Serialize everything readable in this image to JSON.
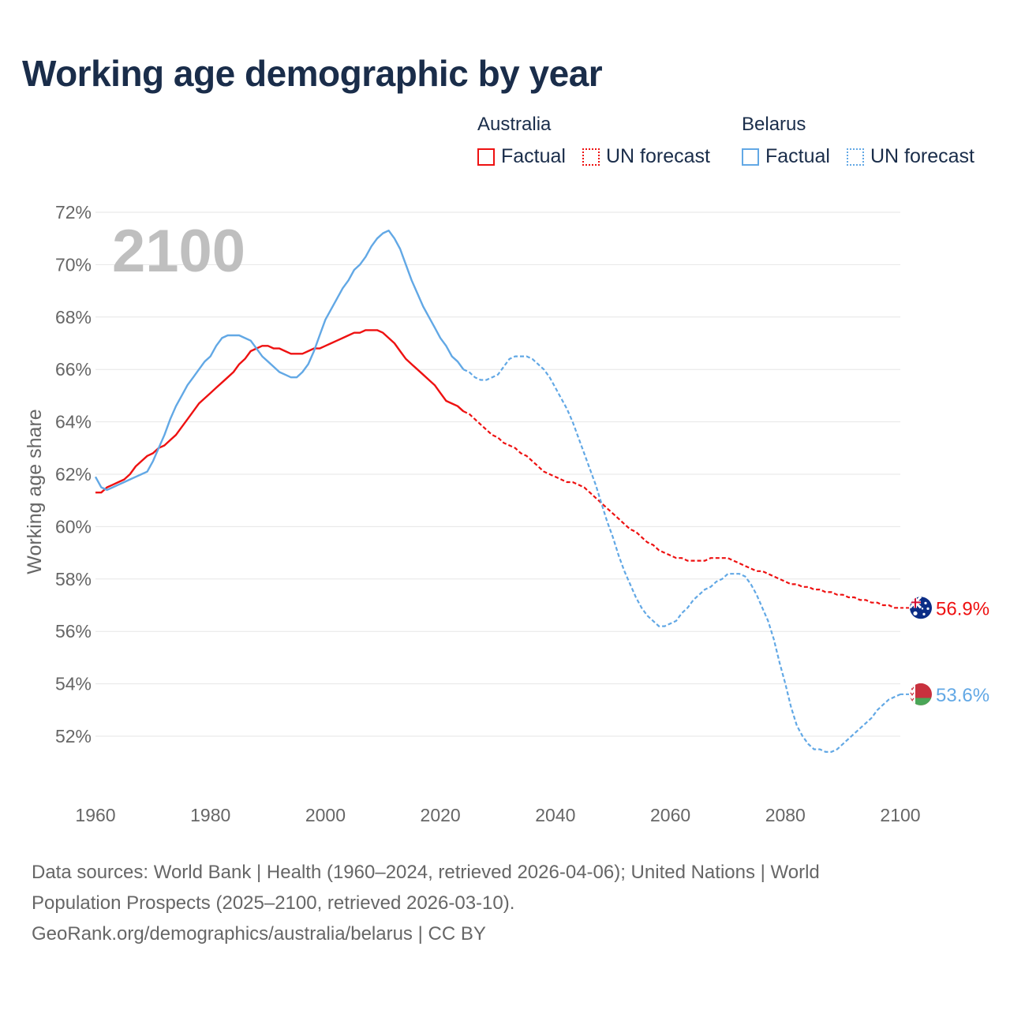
{
  "title": "Working age demographic by year",
  "legend": {
    "groups": [
      {
        "country": "Australia",
        "factual_label": "Factual",
        "forecast_label": "UN forecast",
        "color": "#ee1111"
      },
      {
        "country": "Belarus",
        "factual_label": "Factual",
        "forecast_label": "UN forecast",
        "color": "#62a8e5"
      }
    ]
  },
  "watermark_year": "2100",
  "source_line1": "Data sources: World Bank | Health (1960–2024, retrieved 2026-04-06); United Nations | World",
  "source_line2": "Population Prospects (2025–2100, retrieved 2026-03-10).",
  "source_line3": "GeoRank.org/demographics/australia/belarus | CC BY",
  "colors": {
    "grid": "#e6e6e6",
    "tick": "#666666",
    "title": "#1a2d4a",
    "watermark": "#bfbfbf"
  },
  "chart_data": {
    "type": "line",
    "title": "Working age demographic by year",
    "xlabel": "",
    "ylabel": "Working age share",
    "xlim": [
      1960,
      2100
    ],
    "ylim": [
      50,
      72
    ],
    "x_ticks": [
      1960,
      1980,
      2000,
      2020,
      2040,
      2060,
      2080,
      2100
    ],
    "x_tick_labels": [
      "1960",
      "1980",
      "2000",
      "2020",
      "2040",
      "2060",
      "2080",
      "2100"
    ],
    "y_ticks": [
      52,
      54,
      56,
      58,
      60,
      62,
      64,
      66,
      68,
      70,
      72
    ],
    "y_tick_labels": [
      "52%",
      "54%",
      "56%",
      "58%",
      "60%",
      "62%",
      "64%",
      "66%",
      "68%",
      "70%",
      "72%"
    ],
    "grid": true,
    "forecast_start": 2024,
    "series": [
      {
        "name": "Australia",
        "color": "#ee1111",
        "end_label": "56.9%",
        "flag": "australia",
        "points": [
          [
            1960,
            61.3
          ],
          [
            1961,
            61.3
          ],
          [
            1962,
            61.5
          ],
          [
            1963,
            61.6
          ],
          [
            1964,
            61.7
          ],
          [
            1965,
            61.8
          ],
          [
            1966,
            62.0
          ],
          [
            1967,
            62.3
          ],
          [
            1968,
            62.5
          ],
          [
            1969,
            62.7
          ],
          [
            1970,
            62.8
          ],
          [
            1971,
            63.0
          ],
          [
            1972,
            63.1
          ],
          [
            1973,
            63.3
          ],
          [
            1974,
            63.5
          ],
          [
            1975,
            63.8
          ],
          [
            1976,
            64.1
          ],
          [
            1977,
            64.4
          ],
          [
            1978,
            64.7
          ],
          [
            1979,
            64.9
          ],
          [
            1980,
            65.1
          ],
          [
            1981,
            65.3
          ],
          [
            1982,
            65.5
          ],
          [
            1983,
            65.7
          ],
          [
            1984,
            65.9
          ],
          [
            1985,
            66.2
          ],
          [
            1986,
            66.4
          ],
          [
            1987,
            66.7
          ],
          [
            1988,
            66.8
          ],
          [
            1989,
            66.9
          ],
          [
            1990,
            66.9
          ],
          [
            1991,
            66.8
          ],
          [
            1992,
            66.8
          ],
          [
            1993,
            66.7
          ],
          [
            1994,
            66.6
          ],
          [
            1995,
            66.6
          ],
          [
            1996,
            66.6
          ],
          [
            1997,
            66.7
          ],
          [
            1998,
            66.8
          ],
          [
            1999,
            66.8
          ],
          [
            2000,
            66.9
          ],
          [
            2001,
            67.0
          ],
          [
            2002,
            67.1
          ],
          [
            2003,
            67.2
          ],
          [
            2004,
            67.3
          ],
          [
            2005,
            67.4
          ],
          [
            2006,
            67.4
          ],
          [
            2007,
            67.5
          ],
          [
            2008,
            67.5
          ],
          [
            2009,
            67.5
          ],
          [
            2010,
            67.4
          ],
          [
            2011,
            67.2
          ],
          [
            2012,
            67.0
          ],
          [
            2013,
            66.7
          ],
          [
            2014,
            66.4
          ],
          [
            2015,
            66.2
          ],
          [
            2016,
            66.0
          ],
          [
            2017,
            65.8
          ],
          [
            2018,
            65.6
          ],
          [
            2019,
            65.4
          ],
          [
            2020,
            65.1
          ],
          [
            2021,
            64.8
          ],
          [
            2022,
            64.7
          ],
          [
            2023,
            64.6
          ],
          [
            2024,
            64.4
          ],
          [
            2025,
            64.3
          ],
          [
            2026,
            64.1
          ],
          [
            2027,
            63.9
          ],
          [
            2028,
            63.7
          ],
          [
            2029,
            63.5
          ],
          [
            2030,
            63.4
          ],
          [
            2031,
            63.2
          ],
          [
            2032,
            63.1
          ],
          [
            2033,
            63.0
          ],
          [
            2034,
            62.8
          ],
          [
            2035,
            62.7
          ],
          [
            2036,
            62.5
          ],
          [
            2037,
            62.3
          ],
          [
            2038,
            62.1
          ],
          [
            2039,
            62.0
          ],
          [
            2040,
            61.9
          ],
          [
            2041,
            61.8
          ],
          [
            2042,
            61.7
          ],
          [
            2043,
            61.7
          ],
          [
            2044,
            61.6
          ],
          [
            2045,
            61.5
          ],
          [
            2046,
            61.3
          ],
          [
            2047,
            61.1
          ],
          [
            2048,
            60.9
          ],
          [
            2049,
            60.7
          ],
          [
            2050,
            60.5
          ],
          [
            2051,
            60.3
          ],
          [
            2052,
            60.1
          ],
          [
            2053,
            59.9
          ],
          [
            2054,
            59.8
          ],
          [
            2055,
            59.6
          ],
          [
            2056,
            59.4
          ],
          [
            2057,
            59.3
          ],
          [
            2058,
            59.1
          ],
          [
            2059,
            59.0
          ],
          [
            2060,
            58.9
          ],
          [
            2061,
            58.8
          ],
          [
            2062,
            58.8
          ],
          [
            2063,
            58.7
          ],
          [
            2064,
            58.7
          ],
          [
            2065,
            58.7
          ],
          [
            2066,
            58.7
          ],
          [
            2067,
            58.8
          ],
          [
            2068,
            58.8
          ],
          [
            2069,
            58.8
          ],
          [
            2070,
            58.8
          ],
          [
            2071,
            58.7
          ],
          [
            2072,
            58.6
          ],
          [
            2073,
            58.5
          ],
          [
            2074,
            58.4
          ],
          [
            2075,
            58.3
          ],
          [
            2076,
            58.3
          ],
          [
            2077,
            58.2
          ],
          [
            2078,
            58.1
          ],
          [
            2079,
            58.0
          ],
          [
            2080,
            57.9
          ],
          [
            2081,
            57.8
          ],
          [
            2082,
            57.8
          ],
          [
            2083,
            57.7
          ],
          [
            2084,
            57.7
          ],
          [
            2085,
            57.6
          ],
          [
            2086,
            57.6
          ],
          [
            2087,
            57.5
          ],
          [
            2088,
            57.5
          ],
          [
            2089,
            57.4
          ],
          [
            2090,
            57.4
          ],
          [
            2091,
            57.3
          ],
          [
            2092,
            57.3
          ],
          [
            2093,
            57.2
          ],
          [
            2094,
            57.2
          ],
          [
            2095,
            57.1
          ],
          [
            2096,
            57.1
          ],
          [
            2097,
            57.0
          ],
          [
            2098,
            57.0
          ],
          [
            2099,
            56.9
          ],
          [
            2100,
            56.9
          ]
        ]
      },
      {
        "name": "Belarus",
        "color": "#62a8e5",
        "end_label": "53.6%",
        "flag": "belarus",
        "points": [
          [
            1960,
            61.9
          ],
          [
            1961,
            61.5
          ],
          [
            1962,
            61.4
          ],
          [
            1963,
            61.5
          ],
          [
            1964,
            61.6
          ],
          [
            1965,
            61.7
          ],
          [
            1966,
            61.8
          ],
          [
            1967,
            61.9
          ],
          [
            1968,
            62.0
          ],
          [
            1969,
            62.1
          ],
          [
            1970,
            62.5
          ],
          [
            1971,
            63.0
          ],
          [
            1972,
            63.5
          ],
          [
            1973,
            64.1
          ],
          [
            1974,
            64.6
          ],
          [
            1975,
            65.0
          ],
          [
            1976,
            65.4
          ],
          [
            1977,
            65.7
          ],
          [
            1978,
            66.0
          ],
          [
            1979,
            66.3
          ],
          [
            1980,
            66.5
          ],
          [
            1981,
            66.9
          ],
          [
            1982,
            67.2
          ],
          [
            1983,
            67.3
          ],
          [
            1984,
            67.3
          ],
          [
            1985,
            67.3
          ],
          [
            1986,
            67.2
          ],
          [
            1987,
            67.1
          ],
          [
            1988,
            66.8
          ],
          [
            1989,
            66.5
          ],
          [
            1990,
            66.3
          ],
          [
            1991,
            66.1
          ],
          [
            1992,
            65.9
          ],
          [
            1993,
            65.8
          ],
          [
            1994,
            65.7
          ],
          [
            1995,
            65.7
          ],
          [
            1996,
            65.9
          ],
          [
            1997,
            66.2
          ],
          [
            1998,
            66.7
          ],
          [
            1999,
            67.3
          ],
          [
            2000,
            67.9
          ],
          [
            2001,
            68.3
          ],
          [
            2002,
            68.7
          ],
          [
            2003,
            69.1
          ],
          [
            2004,
            69.4
          ],
          [
            2005,
            69.8
          ],
          [
            2006,
            70.0
          ],
          [
            2007,
            70.3
          ],
          [
            2008,
            70.7
          ],
          [
            2009,
            71.0
          ],
          [
            2010,
            71.2
          ],
          [
            2011,
            71.3
          ],
          [
            2012,
            71.0
          ],
          [
            2013,
            70.6
          ],
          [
            2014,
            70.0
          ],
          [
            2015,
            69.4
          ],
          [
            2016,
            68.9
          ],
          [
            2017,
            68.4
          ],
          [
            2018,
            68.0
          ],
          [
            2019,
            67.6
          ],
          [
            2020,
            67.2
          ],
          [
            2021,
            66.9
          ],
          [
            2022,
            66.5
          ],
          [
            2023,
            66.3
          ],
          [
            2024,
            66.0
          ],
          [
            2025,
            65.9
          ],
          [
            2026,
            65.7
          ],
          [
            2027,
            65.6
          ],
          [
            2028,
            65.6
          ],
          [
            2029,
            65.7
          ],
          [
            2030,
            65.8
          ],
          [
            2031,
            66.1
          ],
          [
            2032,
            66.4
          ],
          [
            2033,
            66.5
          ],
          [
            2034,
            66.5
          ],
          [
            2035,
            66.5
          ],
          [
            2036,
            66.4
          ],
          [
            2037,
            66.2
          ],
          [
            2038,
            66.0
          ],
          [
            2039,
            65.7
          ],
          [
            2040,
            65.3
          ],
          [
            2041,
            64.9
          ],
          [
            2042,
            64.5
          ],
          [
            2043,
            64.0
          ],
          [
            2044,
            63.4
          ],
          [
            2045,
            62.8
          ],
          [
            2046,
            62.2
          ],
          [
            2047,
            61.6
          ],
          [
            2048,
            60.9
          ],
          [
            2049,
            60.2
          ],
          [
            2050,
            59.6
          ],
          [
            2051,
            58.9
          ],
          [
            2052,
            58.3
          ],
          [
            2053,
            57.8
          ],
          [
            2054,
            57.3
          ],
          [
            2055,
            56.9
          ],
          [
            2056,
            56.6
          ],
          [
            2057,
            56.4
          ],
          [
            2058,
            56.2
          ],
          [
            2059,
            56.2
          ],
          [
            2060,
            56.3
          ],
          [
            2061,
            56.4
          ],
          [
            2062,
            56.7
          ],
          [
            2063,
            56.9
          ],
          [
            2064,
            57.2
          ],
          [
            2065,
            57.4
          ],
          [
            2066,
            57.6
          ],
          [
            2067,
            57.7
          ],
          [
            2068,
            57.9
          ],
          [
            2069,
            58.0
          ],
          [
            2070,
            58.2
          ],
          [
            2071,
            58.2
          ],
          [
            2072,
            58.2
          ],
          [
            2073,
            58.1
          ],
          [
            2074,
            57.8
          ],
          [
            2075,
            57.4
          ],
          [
            2076,
            56.9
          ],
          [
            2077,
            56.4
          ],
          [
            2078,
            55.7
          ],
          [
            2079,
            54.8
          ],
          [
            2080,
            54.0
          ],
          [
            2081,
            53.1
          ],
          [
            2082,
            52.4
          ],
          [
            2083,
            52.0
          ],
          [
            2084,
            51.7
          ],
          [
            2085,
            51.5
          ],
          [
            2086,
            51.5
          ],
          [
            2087,
            51.4
          ],
          [
            2088,
            51.4
          ],
          [
            2089,
            51.5
          ],
          [
            2090,
            51.7
          ],
          [
            2091,
            51.9
          ],
          [
            2092,
            52.1
          ],
          [
            2093,
            52.3
          ],
          [
            2094,
            52.5
          ],
          [
            2095,
            52.7
          ],
          [
            2096,
            53.0
          ],
          [
            2097,
            53.2
          ],
          [
            2098,
            53.4
          ],
          [
            2099,
            53.5
          ],
          [
            2100,
            53.6
          ]
        ]
      }
    ]
  }
}
